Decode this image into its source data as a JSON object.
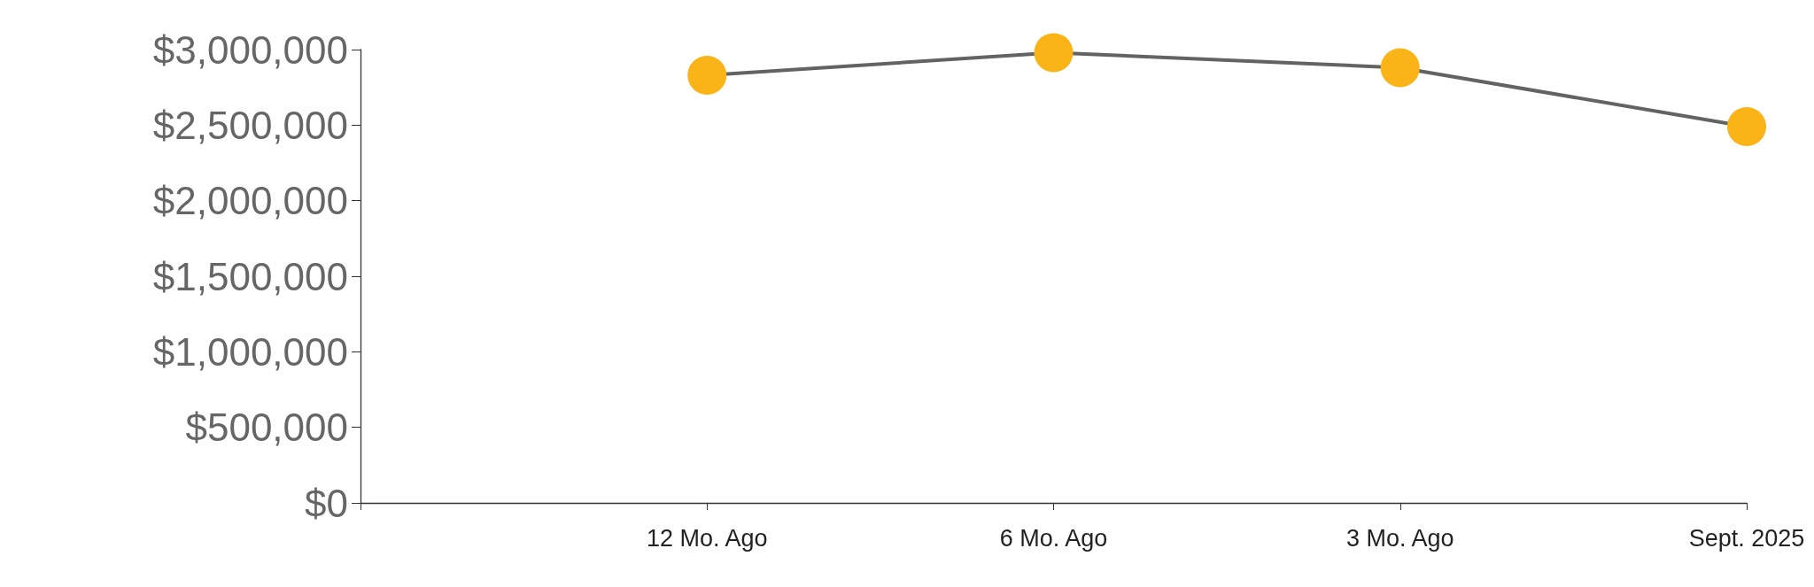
{
  "chart_data": {
    "type": "line",
    "categories": [
      null,
      "12 Mo. Ago",
      "6 Mo. Ago",
      "3 Mo. Ago",
      "Sept. 2025"
    ],
    "series": [
      {
        "color": "#636363",
        "values": [
          null,
          2830000,
          2980000,
          2880000,
          2490000
        ]
      }
    ],
    "marker": "circle",
    "line_style": "solid",
    "ylim": [
      0,
      3000000
    ],
    "yticks": [
      {
        "value": 0,
        "label": "$0"
      },
      {
        "value": 500000,
        "label": "$500,000"
      },
      {
        "value": 1000000,
        "label": "$1,000,000"
      },
      {
        "value": 1500000,
        "label": "$1,500,000"
      },
      {
        "value": 2000000,
        "label": "$2,000,000"
      },
      {
        "value": 2500000,
        "label": "$2,500,000"
      },
      {
        "value": 3000000,
        "label": "$3,000,000"
      }
    ]
  }
}
